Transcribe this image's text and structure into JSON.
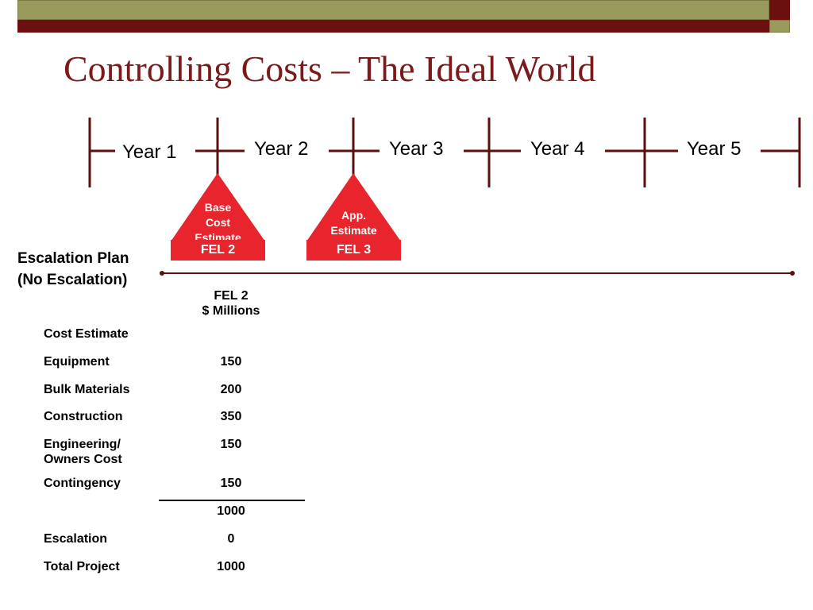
{
  "slide": {
    "title": "Controlling Costs – The Ideal World"
  },
  "timeline": {
    "years": [
      "Year 1",
      "Year 2",
      "Year 3",
      "Year 4",
      "Year 5"
    ],
    "line_color": "#5c0f0f"
  },
  "markers": [
    {
      "label": "Base Cost Estimate",
      "lines": [
        "Base",
        "Cost",
        "Estimate"
      ],
      "gate": "FEL 2"
    },
    {
      "label": "App. Estimate",
      "lines": [
        "App.",
        "Estimate"
      ],
      "gate": "FEL 3"
    }
  ],
  "marker_color": "#e8242c",
  "escalation_plan": {
    "line1": "Escalation Plan",
    "line2": "(No Escalation)"
  },
  "table": {
    "column_header": [
      "FEL 2",
      "$ Millions"
    ],
    "section_label": "Cost Estimate",
    "rows": [
      {
        "label": [
          "Equipment"
        ],
        "value": "150"
      },
      {
        "label": [
          "Bulk Materials"
        ],
        "value": "200"
      },
      {
        "label": [
          "Construction"
        ],
        "value": "350"
      },
      {
        "label": [
          "Engineering/",
          "Owners Cost"
        ],
        "value": "150"
      },
      {
        "label": [
          "Contingency"
        ],
        "value": "150"
      }
    ],
    "subtotal": "1000",
    "escalation": {
      "label": "Escalation",
      "value": "0"
    },
    "total": {
      "label": "Total Project",
      "value": "1000"
    }
  },
  "colors": {
    "title": "#7a1a1a",
    "band_olive": "#9a9a5c",
    "band_maroon": "#6b0f0f"
  }
}
